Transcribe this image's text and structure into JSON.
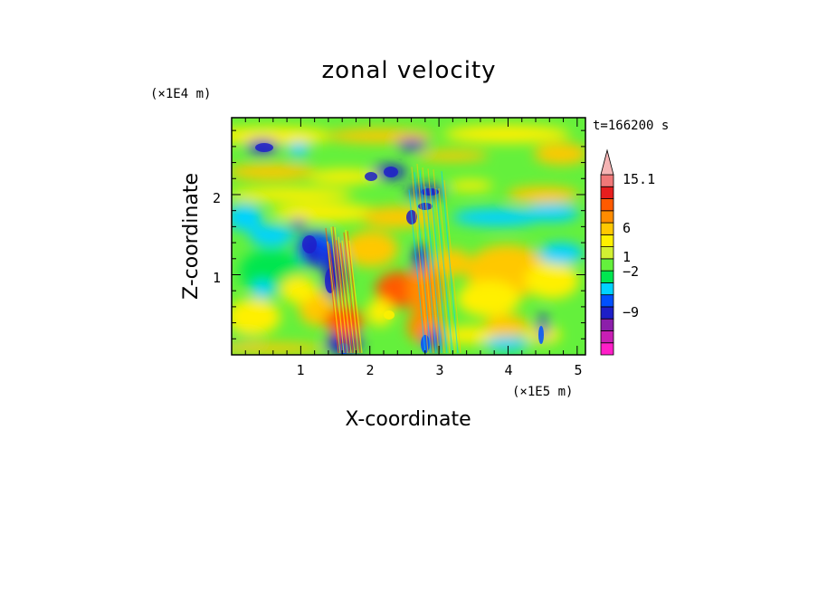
{
  "chart_data": {
    "type": "heatmap",
    "title": "zonal velocity",
    "xlabel": "X-coordinate",
    "ylabel": "Z-coordinate",
    "x_unit": "(×1E5 m)",
    "y_unit": "(×1E4 m)",
    "time_label": "t=166200 s",
    "xlim": [
      0,
      5.12
    ],
    "ylim": [
      0,
      2.96
    ],
    "x_ticks": [
      "1",
      "2",
      "3",
      "4",
      "5"
    ],
    "y_ticks": [
      "1",
      "2"
    ],
    "colorbar": {
      "levels": [
        -15,
        -12,
        -9,
        -6,
        -3,
        -2,
        -1,
        0,
        1,
        2,
        3,
        6,
        9,
        12,
        15.1
      ],
      "labels": [
        "15.1",
        "6",
        "1",
        "−2",
        "−9"
      ],
      "colors": [
        "#ff1ec8",
        "#c81eb4",
        "#8c1eaa",
        "#1e1ec8",
        "#0050ff",
        "#00d2ff",
        "#00e650",
        "#64f03c",
        "#d2f032",
        "#fff000",
        "#ffc800",
        "#ff8c00",
        "#ff5a00",
        "#e61e1e",
        "#f07878",
        "#f5b4b4"
      ],
      "extend": "max"
    },
    "grid": false
  }
}
